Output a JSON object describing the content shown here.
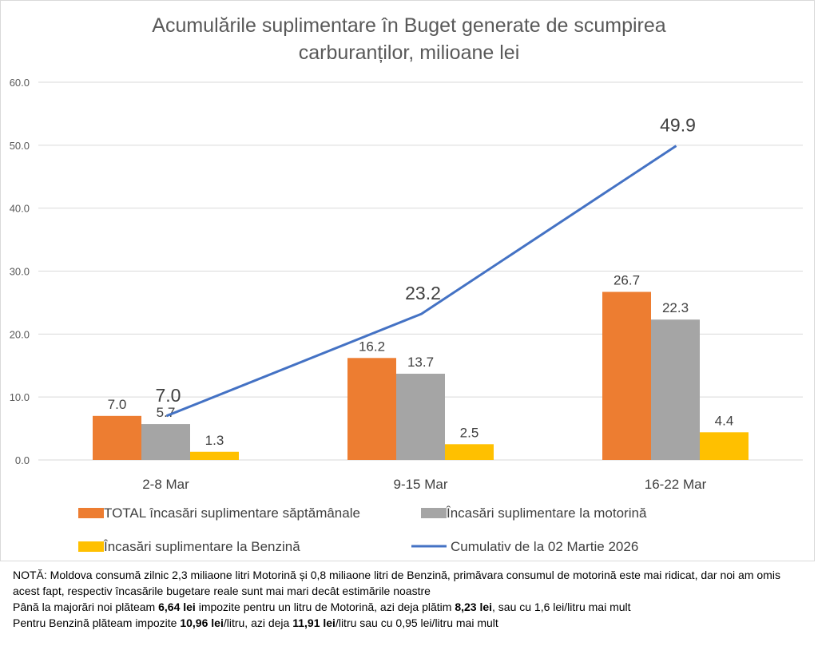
{
  "chart_data": {
    "type": "bar",
    "title_lines": [
      "Acumulările suplimentare în Buget generate de scumpirea",
      "carburanților, milioane lei"
    ],
    "categories": [
      "2-8 Mar",
      "9-15 Mar",
      "16-22 Mar"
    ],
    "ylim": [
      0,
      60
    ],
    "yticks": [
      "0.0",
      "10.0",
      "20.0",
      "30.0",
      "40.0",
      "50.0",
      "60.0"
    ],
    "ytick_values": [
      0,
      10,
      20,
      30,
      40,
      50,
      60
    ],
    "grid": true,
    "legend_position": "bottom",
    "series": [
      {
        "name": "TOTAL încasări suplimentare săptămânale",
        "kind": "bar",
        "color": "#ED7D31",
        "values": [
          7.0,
          16.2,
          26.7
        ],
        "labels": [
          "7.0",
          "16.2",
          "26.7"
        ]
      },
      {
        "name": "Încasări suplimentare la motorină",
        "kind": "bar",
        "color": "#A5A5A5",
        "values": [
          5.7,
          13.7,
          22.3
        ],
        "labels": [
          "5.7",
          "13.7",
          "22.3"
        ]
      },
      {
        "name": "Încasări suplimentare la Benzină",
        "kind": "bar",
        "color": "#FFC000",
        "values": [
          1.3,
          2.5,
          4.4
        ],
        "labels": [
          "1.3",
          "2.5",
          "4.4"
        ]
      },
      {
        "name": "Cumulativ de la 02 Martie 2026",
        "kind": "line",
        "color": "#4472C4",
        "values": [
          7.0,
          23.2,
          49.9
        ],
        "labels": [
          "7.0",
          "23.2",
          "49.9"
        ]
      }
    ]
  },
  "note": {
    "line1": "NOTĂ: Moldova consumă zilnic 2,3 miliaone litri Motorină și 0,8 miliaone litri de Benzină, primăvara consumul de motorină este mai ridicat, dar noi am omis acest fapt, respectiv încasările bugetare reale sunt mai mari decât estimările noastre",
    "line2": {
      "a": "Până la majorări noi plăteam ",
      "b": "6,64 lei",
      "c": " impozite pentru un litru de Motorină, azi deja plătim ",
      "d": "8,23 lei",
      "e": ", sau cu 1,6 lei/litru mai mult"
    },
    "line3": {
      "a": "Pentru Benzină plăteam impozite ",
      "b": "10,96 lei",
      "c": "/litru, azi deja ",
      "d": "11,91 lei",
      "e": "/litru sau cu  0,95 lei/litru mai mult"
    }
  }
}
